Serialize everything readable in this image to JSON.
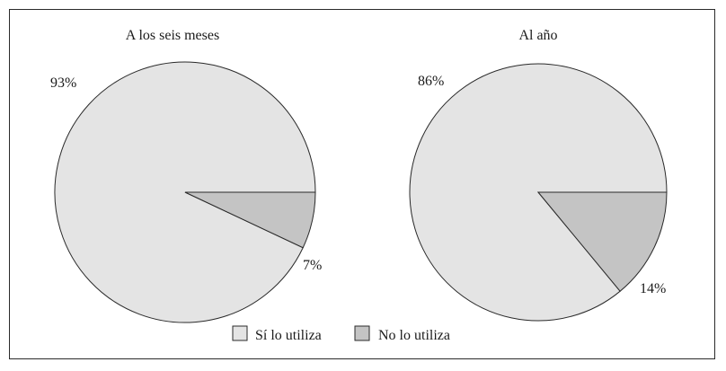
{
  "chart_data": [
    {
      "type": "pie",
      "title": "A los seis meses",
      "slices": [
        {
          "label": "Sí lo utiliza",
          "value": 93,
          "label_text": "93%"
        },
        {
          "label": "No lo utiliza",
          "value": 7,
          "label_text": "7%"
        }
      ]
    },
    {
      "type": "pie",
      "title": "Al año",
      "slices": [
        {
          "label": "Sí lo utiliza",
          "value": 86,
          "label_text": "86%"
        },
        {
          "label": "No lo utiliza",
          "value": 14,
          "label_text": "14%"
        }
      ]
    }
  ],
  "legend": {
    "placement": "bottom-center",
    "items": [
      {
        "label": "Sí lo utiliza",
        "color": "#e4e4e4"
      },
      {
        "label": "No lo utiliza",
        "color": "#c4c4c4"
      }
    ]
  },
  "colors": {
    "si": "#e4e4e4",
    "no": "#c4c4c4",
    "stroke": "#2a2a2a"
  }
}
